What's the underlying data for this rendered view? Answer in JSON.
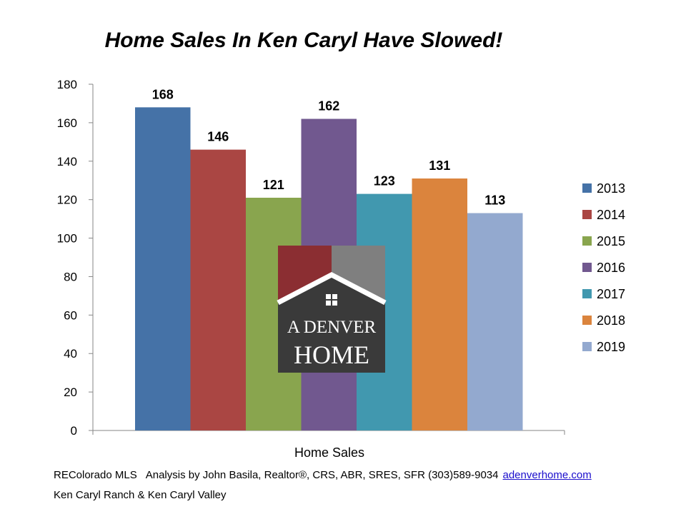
{
  "chart_data": {
    "type": "bar",
    "title": "Home Sales In Ken Caryl Have Slowed!",
    "xlabel": "Home Sales",
    "ylabel": "",
    "ylim": [
      0,
      180
    ],
    "yticks": [
      0,
      20,
      40,
      60,
      80,
      100,
      120,
      140,
      160,
      180
    ],
    "categories": [
      "Home Sales"
    ],
    "legend_position": "right",
    "grid": false,
    "series": [
      {
        "name": "2013",
        "values": [
          168
        ],
        "color": "#4572A7"
      },
      {
        "name": "2014",
        "values": [
          146
        ],
        "color": "#AA4643"
      },
      {
        "name": "2015",
        "values": [
          121
        ],
        "color": "#89A54E"
      },
      {
        "name": "2016",
        "values": [
          162
        ],
        "color": "#71588F"
      },
      {
        "name": "2017",
        "values": [
          123
        ],
        "color": "#4198AF"
      },
      {
        "name": "2018",
        "values": [
          131
        ],
        "color": "#DB843D"
      },
      {
        "name": "2019",
        "values": [
          113
        ],
        "color": "#93A9CF"
      }
    ]
  },
  "logo": {
    "line1": "A DENVER",
    "line2": "HOME",
    "colors": {
      "roof_left": "#8B2E32",
      "roof_right": "#7F7F7F",
      "body": "#3A3A3A"
    }
  },
  "footer": {
    "source": "REColorado MLS",
    "analysis": "Analysis by John Basila, Realtor®, CRS, ABR, SRES, SFR (303)589-9034",
    "link": "adenverhome.com",
    "area": "Ken Caryl Ranch & Ken Caryl Valley"
  }
}
